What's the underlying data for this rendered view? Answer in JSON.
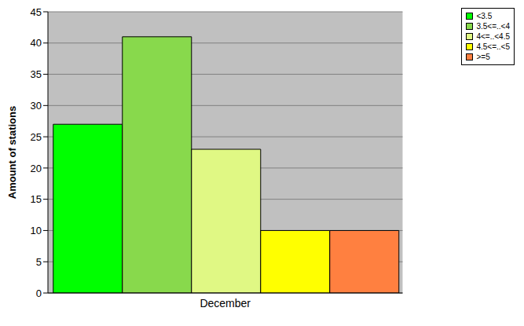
{
  "chart_data": {
    "type": "bar",
    "y_label": "Amount of stations",
    "categories": [
      "December"
    ],
    "series": [
      {
        "name": "<3.5",
        "color": "#00ff00",
        "values": [
          27
        ]
      },
      {
        "name": "3.5<=..<4",
        "color": "#88d94c",
        "values": [
          41
        ]
      },
      {
        "name": "4<=..<4.5",
        "color": "#e0f884",
        "values": [
          23
        ]
      },
      {
        "name": "4.5<=..<5",
        "color": "#ffff00",
        "values": [
          10
        ]
      },
      {
        "name": ">=5",
        "color": "#ff8040",
        "values": [
          10
        ]
      }
    ],
    "ylim": [
      0,
      45
    ],
    "yticks": [
      0,
      5,
      10,
      15,
      20,
      25,
      30,
      35,
      40,
      45
    ],
    "grid": true,
    "legend": "upper right"
  }
}
